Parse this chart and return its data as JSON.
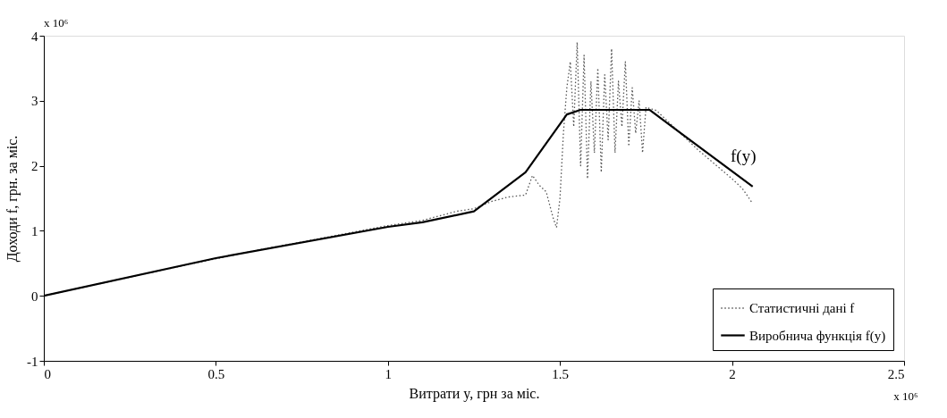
{
  "chart_data": {
    "type": "line",
    "xlabel": "Витрати y, грн за міс.",
    "ylabel": "Доходи f, грн. за міс.",
    "xlim": [
      0,
      2.5
    ],
    "xticks": [
      0,
      0.5,
      1,
      1.5,
      2,
      2.5
    ],
    "ylim": [
      -1,
      4
    ],
    "yticks": [
      -1,
      0,
      1,
      2,
      3,
      4
    ],
    "grid": false,
    "legend": "bottom right",
    "annotations": [
      "x 10⁶",
      "x 10⁶",
      "f(y)"
    ],
    "series": [
      {
        "name": "Статистичні дані f",
        "color": "#555555",
        "line_style": "dotted",
        "x": [
          0,
          0.2,
          0.4,
          0.6,
          0.8,
          1.0,
          1.1,
          1.2,
          1.25,
          1.3,
          1.35,
          1.4,
          1.42,
          1.44,
          1.46,
          1.48,
          1.49,
          1.5,
          1.51,
          1.52,
          1.53,
          1.54,
          1.55,
          1.56,
          1.57,
          1.58,
          1.59,
          1.6,
          1.61,
          1.62,
          1.63,
          1.64,
          1.65,
          1.66,
          1.67,
          1.68,
          1.69,
          1.7,
          1.71,
          1.72,
          1.73,
          1.74,
          1.75,
          1.78,
          1.85,
          1.9,
          2.0,
          2.03,
          2.06
        ],
        "values": [
          0,
          0.23,
          0.46,
          0.68,
          0.88,
          1.08,
          1.16,
          1.3,
          1.34,
          1.45,
          1.52,
          1.55,
          1.85,
          1.7,
          1.6,
          1.2,
          1.05,
          1.5,
          2.5,
          3.2,
          3.6,
          2.6,
          3.9,
          2.0,
          3.7,
          1.8,
          3.3,
          2.2,
          3.5,
          1.9,
          3.4,
          2.4,
          3.8,
          2.2,
          3.3,
          2.6,
          3.6,
          2.3,
          3.2,
          2.5,
          3.0,
          2.2,
          2.9,
          2.85,
          2.5,
          2.25,
          1.8,
          1.65,
          1.42
        ]
      },
      {
        "name": "Виробнича функція f(y)",
        "color": "#000000",
        "line_style": "solid",
        "x": [
          0,
          0.5,
          1.0,
          1.1,
          1.25,
          1.4,
          1.52,
          1.56,
          1.76,
          2.06
        ],
        "values": [
          0,
          0.58,
          1.06,
          1.13,
          1.3,
          1.9,
          2.79,
          2.86,
          2.86,
          1.68
        ]
      }
    ]
  }
}
